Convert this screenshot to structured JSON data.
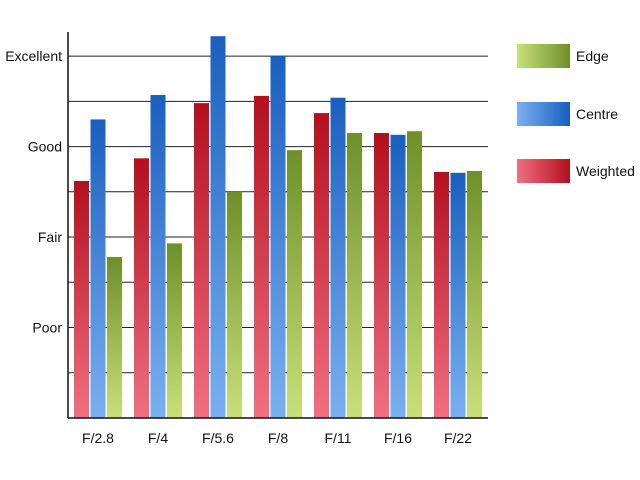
{
  "chart_data": {
    "type": "bar",
    "categories": [
      "F/2.8",
      "F/4",
      "F/5.6",
      "F/8",
      "F/11",
      "F/16",
      "F/22"
    ],
    "series": [
      {
        "name": "Weighted",
        "values": [
          2.62,
          2.87,
          3.48,
          3.56,
          3.37,
          3.15,
          2.72
        ],
        "color_top": "#b40f1e",
        "color_bottom": "#f07080"
      },
      {
        "name": "Centre",
        "values": [
          3.3,
          3.57,
          4.22,
          4.0,
          3.54,
          3.13,
          2.71
        ],
        "color_top": "#1a5fbf",
        "color_bottom": "#7ab0f0"
      },
      {
        "name": "Edge",
        "values": [
          1.78,
          1.93,
          2.5,
          2.96,
          3.15,
          3.17,
          2.73
        ],
        "color_top": "#6e8f2a",
        "color_bottom": "#c8e07a"
      }
    ],
    "y_tick_values": [
      1,
      2,
      3,
      4
    ],
    "y_tick_labels": [
      "Poor",
      "Fair",
      "Good",
      "Excellent"
    ],
    "ylim": [
      0,
      4.2
    ],
    "grid_step": 0.5,
    "grid": true,
    "legend": {
      "placement": "right",
      "order": [
        "Edge",
        "Centre",
        "Weighted"
      ]
    },
    "title": "",
    "xlabel": "",
    "ylabel": ""
  }
}
